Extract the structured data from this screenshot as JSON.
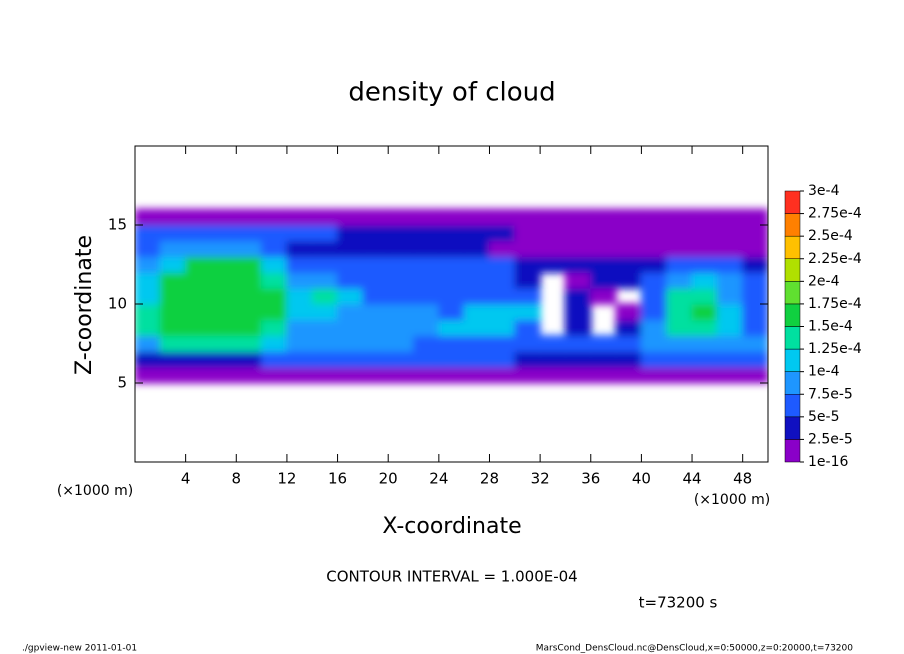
{
  "chart_data": {
    "type": "heatmap",
    "title": "density of cloud",
    "x_label": "X-coordinate",
    "y_label": "Z-coordinate",
    "x_unit": "(×1000 m)",
    "contour_note": "CONTOUR INTERVAL = 1.000E-04",
    "time_label": "t=73200 s",
    "footer_left": "./gpview-new  2011-01-01",
    "footer_right": "MarsCond_DensCloud.nc@DensCloud,x=0:50000,z=0:20000,t=73200",
    "xlim": [
      0,
      50
    ],
    "ylim": [
      0,
      20
    ],
    "xticks": [
      4,
      8,
      12,
      16,
      20,
      24,
      28,
      32,
      36,
      40,
      44,
      48
    ],
    "yticks": [
      5,
      10,
      15
    ],
    "x": [
      1,
      3,
      5,
      7,
      9,
      11,
      13,
      15,
      17,
      19,
      21,
      23,
      25,
      27,
      29,
      31,
      33,
      35,
      37,
      39,
      41,
      43,
      45,
      47,
      49
    ],
    "y": [
      5.5,
      6.5,
      7.5,
      8.5,
      9.5,
      10.5,
      11.5,
      12.5,
      13.5,
      14.5,
      15.5
    ],
    "values": [
      [
        1e-05,
        1e-05,
        1e-05,
        1e-05,
        1e-05,
        1e-05,
        1e-05,
        1e-05,
        1e-05,
        1e-05,
        1e-05,
        1e-05,
        1e-05,
        1e-05,
        1e-05,
        1e-05,
        1e-05,
        1e-05,
        1e-05,
        1e-05,
        1e-05,
        1e-05,
        1e-05,
        1e-05,
        1e-05
      ],
      [
        4e-05,
        4e-05,
        4e-05,
        4e-05,
        4e-05,
        6e-05,
        6e-05,
        6e-05,
        6e-05,
        6e-05,
        6e-05,
        6e-05,
        6e-05,
        6e-05,
        6e-05,
        3e-05,
        3e-05,
        3e-05,
        3e-05,
        3e-05,
        6e-05,
        6e-05,
        6e-05,
        6e-05,
        6e-05
      ],
      [
        9e-05,
        0.00014,
        0.00014,
        0.00014,
        0.00014,
        0.0001,
        8e-05,
        8e-05,
        8e-05,
        8e-05,
        8e-05,
        7e-05,
        7e-05,
        7e-05,
        7e-05,
        5e-05,
        5e-05,
        5e-05,
        5e-05,
        5e-05,
        8e-05,
        8e-05,
        8e-05,
        8e-05,
        8e-05
      ],
      [
        0.00013,
        0.00016,
        0.00016,
        0.00016,
        0.00016,
        0.00013,
        9e-05,
        9e-05,
        9e-05,
        9e-05,
        9e-05,
        8e-05,
        0.0001,
        0.0001,
        0.0001,
        6e-05,
        null,
        4e-05,
        null,
        3e-05,
        8e-05,
        0.00013,
        0.00013,
        0.0001,
        7e-05
      ],
      [
        0.00013,
        0.00017,
        0.00017,
        0.00017,
        0.00017,
        0.00015,
        0.00012,
        0.00011,
        8e-05,
        9e-05,
        9e-05,
        9e-05,
        7e-05,
        0.00011,
        0.00011,
        0.0001,
        null,
        3e-05,
        null,
        2e-05,
        7e-05,
        0.00014,
        0.00015,
        0.00011,
        6e-05
      ],
      [
        0.00012,
        0.00017,
        0.00017,
        0.00017,
        0.00017,
        0.00015,
        0.00012,
        0.00013,
        0.0001,
        6e-05,
        6e-05,
        6e-05,
        6e-05,
        5e-05,
        7e-05,
        5e-05,
        null,
        3e-05,
        2e-05,
        null,
        6e-05,
        0.00013,
        0.00014,
        9e-05,
        5e-05
      ],
      [
        0.0001,
        0.00015,
        0.00017,
        0.00017,
        0.00017,
        0.00014,
        8e-05,
        9e-05,
        7e-05,
        5e-05,
        5e-05,
        5e-05,
        5e-05,
        5e-05,
        5e-05,
        3e-05,
        null,
        2e-05,
        3e-05,
        4e-05,
        5e-05,
        9e-05,
        0.00011,
        8e-05,
        5e-05
      ],
      [
        8e-05,
        0.00012,
        0.00017,
        0.00017,
        0.00017,
        0.00011,
        7e-05,
        5e-05,
        5e-05,
        5e-05,
        5e-05,
        5e-05,
        6e-05,
        6e-05,
        6e-05,
        3e-05,
        3e-05,
        3e-05,
        3e-05,
        3e-05,
        3e-05,
        5e-05,
        5e-05,
        5e-05,
        4e-05
      ],
      [
        6e-05,
        8e-05,
        8e-05,
        8e-05,
        8e-05,
        6e-05,
        4e-05,
        4e-05,
        4e-05,
        4e-05,
        4e-05,
        4e-05,
        4e-05,
        4e-05,
        2e-05,
        2e-05,
        2e-05,
        2e-05,
        2e-05,
        2e-05,
        2e-05,
        2e-05,
        2e-05,
        2e-05,
        2e-05
      ],
      [
        5e-05,
        5e-05,
        5e-05,
        5e-05,
        5e-05,
        5e-05,
        5e-05,
        5e-05,
        4e-05,
        4e-05,
        4e-05,
        4e-05,
        4e-05,
        4e-05,
        4e-05,
        2e-05,
        2e-05,
        2e-05,
        2e-05,
        2e-05,
        2e-05,
        2e-05,
        2e-05,
        2e-05,
        2e-05
      ],
      [
        1e-05,
        1e-05,
        1e-05,
        1e-05,
        1e-05,
        1e-05,
        1e-05,
        1e-05,
        1e-05,
        1e-05,
        1e-05,
        1e-05,
        1e-05,
        1e-05,
        1e-05,
        1e-05,
        1e-05,
        1e-05,
        1e-05,
        1e-05,
        1e-05,
        1e-05,
        1e-05,
        1e-05,
        1e-05
      ]
    ],
    "clim": [
      1e-16,
      0.0003
    ],
    "colorbar_ticks": [
      {
        "value": 1e-16,
        "label": "1e-16"
      },
      {
        "value": 2.5e-05,
        "label": "2.5e-5"
      },
      {
        "value": 5e-05,
        "label": "5e-5"
      },
      {
        "value": 7.5e-05,
        "label": "7.5e-5"
      },
      {
        "value": 0.0001,
        "label": "1e-4"
      },
      {
        "value": 0.000125,
        "label": "1.25e-4"
      },
      {
        "value": 0.00015,
        "label": "1.5e-4"
      },
      {
        "value": 0.000175,
        "label": "1.75e-4"
      },
      {
        "value": 0.0002,
        "label": "2e-4"
      },
      {
        "value": 0.000225,
        "label": "2.25e-4"
      },
      {
        "value": 0.00025,
        "label": "2.5e-4"
      },
      {
        "value": 0.000275,
        "label": "2.75e-4"
      },
      {
        "value": 0.0003,
        "label": "3e-4"
      }
    ],
    "colors": [
      "#8a00c8",
      "#1010c0",
      "#1e5aff",
      "#1e96ff",
      "#00c8f0",
      "#00e0a0",
      "#10d040",
      "#60e030",
      "#b0e000",
      "#ffc000",
      "#ff8000",
      "#ff3020",
      "#ff9090"
    ]
  }
}
